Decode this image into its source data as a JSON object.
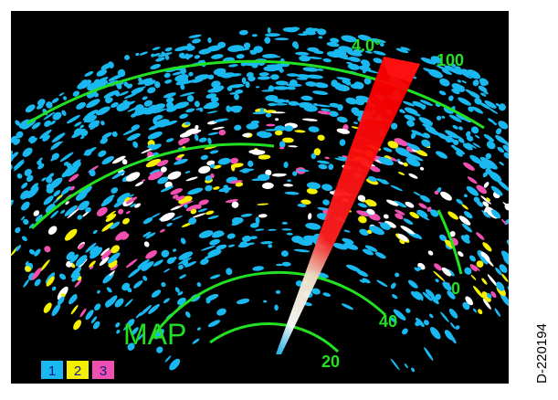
{
  "screen": {
    "elevation": "4.0°",
    "range_labels": [
      "100",
      "0",
      "40",
      "20"
    ],
    "mode": "MAP"
  },
  "legend": [
    "1",
    "2",
    "3"
  ],
  "figure_id": "D-220194"
}
